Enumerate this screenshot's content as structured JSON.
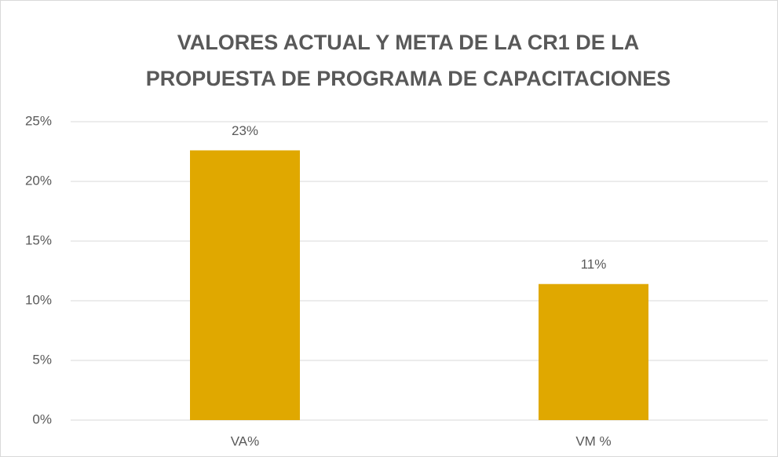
{
  "chart_data": {
    "type": "bar",
    "title": [
      "VALORES ACTUAL Y META DE LA CR1 DE LA",
      "PROPUESTA DE PROGRAMA DE CAPACITACIONES"
    ],
    "categories": [
      "VA%",
      "VM %"
    ],
    "values": [
      22.6,
      11.4
    ],
    "value_labels": [
      "23%",
      "11%"
    ],
    "color": "#e0a800",
    "ylim": [
      0,
      25
    ],
    "yticks": [
      {
        "value": 0,
        "label": "0%"
      },
      {
        "value": 5,
        "label": "5%"
      },
      {
        "value": 10,
        "label": "10%"
      },
      {
        "value": 15,
        "label": "15%"
      },
      {
        "value": 20,
        "label": "20%"
      },
      {
        "value": 25,
        "label": "25%"
      }
    ],
    "grid": true
  }
}
